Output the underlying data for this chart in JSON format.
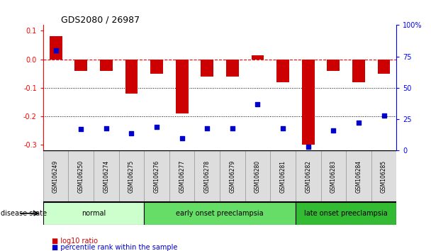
{
  "title": "GDS2080 / 26987",
  "samples": [
    "GSM106249",
    "GSM106250",
    "GSM106274",
    "GSM106275",
    "GSM106276",
    "GSM106277",
    "GSM106278",
    "GSM106279",
    "GSM106280",
    "GSM106281",
    "GSM106282",
    "GSM106283",
    "GSM106284",
    "GSM106285"
  ],
  "log10_ratio": [
    0.08,
    -0.04,
    -0.04,
    -0.12,
    -0.05,
    -0.19,
    -0.06,
    -0.06,
    0.015,
    -0.08,
    -0.3,
    -0.04,
    -0.08,
    -0.05
  ],
  "percentile_rank": [
    80,
    17,
    18,
    14,
    19,
    10,
    18,
    18,
    37,
    18,
    3,
    16,
    22,
    28
  ],
  "bar_color": "#cc0000",
  "dot_color": "#0000cc",
  "groups": [
    {
      "label": "normal",
      "start": 0,
      "end": 4,
      "color": "#ccffcc"
    },
    {
      "label": "early onset preeclampsia",
      "start": 4,
      "end": 10,
      "color": "#66dd66"
    },
    {
      "label": "late onset preeclampsia",
      "start": 10,
      "end": 14,
      "color": "#33bb33"
    }
  ],
  "ylim_left": [
    -0.32,
    0.12
  ],
  "ylim_right": [
    0,
    100
  ],
  "yticks_left": [
    -0.3,
    -0.2,
    -0.1,
    0.0,
    0.1
  ],
  "yticks_right": [
    0,
    25,
    50,
    75,
    100
  ],
  "ytick_labels_right": [
    "0",
    "25",
    "50",
    "75",
    "100%"
  ],
  "hline_y": 0,
  "dotted_lines": [
    -0.1,
    -0.2
  ],
  "legend_items": [
    "log10 ratio",
    "percentile rank within the sample"
  ],
  "legend_colors": [
    "#cc0000",
    "#0000cc"
  ],
  "disease_state_label": "disease state",
  "background_color": "#ffffff"
}
